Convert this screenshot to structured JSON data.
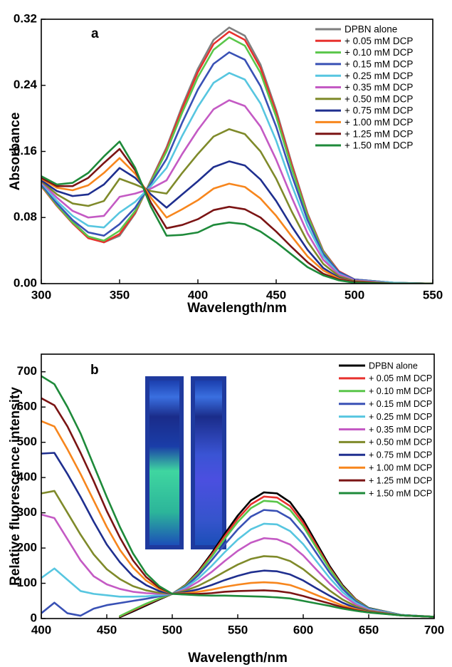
{
  "chart_data": [
    {
      "type": "line",
      "annotation": "a",
      "xlabel": "Wavelength/nm",
      "ylabel": "Absorbance",
      "x": [
        300,
        310,
        320,
        330,
        340,
        350,
        360,
        370,
        380,
        390,
        400,
        410,
        420,
        430,
        440,
        450,
        460,
        470,
        480,
        490,
        500,
        525,
        550
      ],
      "xlim": [
        300,
        550
      ],
      "xticks": [
        300,
        350,
        400,
        450,
        500,
        550
      ],
      "ylim": [
        0,
        0.32
      ],
      "yticks": [
        {
          "value": 0,
          "label": "0.00"
        },
        0.08,
        0.16,
        0.24,
        0.32
      ],
      "legend": "upper right",
      "series": [
        {
          "name": "DPBN alone",
          "color": "#7f7f7f",
          "values": [
            0.118,
            0.095,
            0.075,
            0.057,
            0.05,
            0.058,
            0.085,
            0.125,
            0.165,
            0.215,
            0.26,
            0.295,
            0.31,
            0.3,
            0.265,
            0.21,
            0.145,
            0.085,
            0.04,
            0.015,
            0.005,
            0.001,
            0
          ]
        },
        {
          "name": "+ 0.05 mM DCP",
          "color": "#e8312e",
          "values": [
            0.118,
            0.094,
            0.073,
            0.055,
            0.05,
            0.06,
            0.086,
            0.124,
            0.163,
            0.212,
            0.256,
            0.29,
            0.305,
            0.295,
            0.261,
            0.207,
            0.143,
            0.084,
            0.039,
            0.015,
            0.005,
            0.001,
            0
          ]
        },
        {
          "name": "+ 0.10 mM DCP",
          "color": "#5ac64a",
          "values": [
            0.119,
            0.095,
            0.074,
            0.057,
            0.052,
            0.064,
            0.088,
            0.123,
            0.16,
            0.207,
            0.25,
            0.283,
            0.298,
            0.288,
            0.255,
            0.202,
            0.139,
            0.082,
            0.038,
            0.014,
            0.005,
            0.001,
            0
          ]
        },
        {
          "name": "+ 0.15 mM DCP",
          "color": "#3951b5",
          "values": [
            0.12,
            0.097,
            0.077,
            0.062,
            0.058,
            0.072,
            0.092,
            0.121,
            0.151,
            0.195,
            0.235,
            0.266,
            0.28,
            0.271,
            0.239,
            0.19,
            0.131,
            0.077,
            0.036,
            0.014,
            0.005,
            0.001,
            0
          ]
        },
        {
          "name": "+ 0.25 mM DCP",
          "color": "#57c6e0",
          "values": [
            0.122,
            0.1,
            0.082,
            0.07,
            0.068,
            0.086,
            0.099,
            0.118,
            0.14,
            0.179,
            0.214,
            0.243,
            0.255,
            0.247,
            0.218,
            0.173,
            0.119,
            0.07,
            0.033,
            0.012,
            0.004,
            0.001,
            0
          ]
        },
        {
          "name": "+ 0.35 mM DCP",
          "color": "#c45ac4",
          "values": [
            0.123,
            0.104,
            0.088,
            0.08,
            0.082,
            0.105,
            0.109,
            0.115,
            0.125,
            0.157,
            0.186,
            0.211,
            0.222,
            0.215,
            0.19,
            0.15,
            0.104,
            0.061,
            0.029,
            0.011,
            0.004,
            0,
            0
          ]
        },
        {
          "name": "+ 0.50 mM DCP",
          "color": "#7f8a2a",
          "values": [
            0.124,
            0.108,
            0.097,
            0.094,
            0.1,
            0.127,
            0.12,
            0.112,
            0.109,
            0.134,
            0.157,
            0.178,
            0.187,
            0.181,
            0.16,
            0.127,
            0.087,
            0.051,
            0.024,
            0.009,
            0.003,
            0,
            0
          ]
        },
        {
          "name": "+ 0.75 mM DCP",
          "color": "#1f2f8f",
          "values": [
            0.125,
            0.112,
            0.106,
            0.108,
            0.12,
            0.14,
            0.128,
            0.108,
            0.092,
            0.108,
            0.124,
            0.141,
            0.148,
            0.143,
            0.126,
            0.1,
            0.069,
            0.041,
            0.019,
            0.007,
            0.002,
            0,
            0
          ]
        },
        {
          "name": "+ 1.00 mM DCP",
          "color": "#f7861d",
          "values": [
            0.127,
            0.116,
            0.113,
            0.119,
            0.134,
            0.152,
            0.133,
            0.104,
            0.08,
            0.09,
            0.101,
            0.115,
            0.121,
            0.117,
            0.103,
            0.082,
            0.057,
            0.033,
            0.016,
            0.006,
            0.002,
            0,
            0
          ]
        },
        {
          "name": "+ 1.25 mM DCP",
          "color": "#7b1414",
          "values": [
            0.128,
            0.118,
            0.118,
            0.128,
            0.146,
            0.163,
            0.137,
            0.098,
            0.067,
            0.071,
            0.078,
            0.089,
            0.093,
            0.09,
            0.08,
            0.063,
            0.044,
            0.026,
            0.012,
            0.005,
            0.002,
            0,
            0
          ]
        },
        {
          "name": "+ 1.50 mM DCP",
          "color": "#1e8a3a",
          "values": [
            0.13,
            0.12,
            0.122,
            0.134,
            0.154,
            0.172,
            0.14,
            0.093,
            0.058,
            0.059,
            0.062,
            0.071,
            0.074,
            0.072,
            0.063,
            0.05,
            0.035,
            0.02,
            0.01,
            0.004,
            0.001,
            0,
            0
          ]
        }
      ]
    },
    {
      "type": "line",
      "annotation": "b",
      "xlabel": "Wavelength/nm",
      "ylabel": "Relative fluorescence intensity",
      "x": [
        400,
        410,
        420,
        430,
        440,
        450,
        460,
        470,
        480,
        490,
        500,
        510,
        520,
        530,
        540,
        550,
        560,
        570,
        580,
        590,
        600,
        610,
        620,
        630,
        640,
        650,
        675,
        700
      ],
      "xlim": [
        400,
        700
      ],
      "xticks": [
        400,
        450,
        500,
        550,
        600,
        650,
        700
      ],
      "ylim": [
        0,
        750
      ],
      "yticks": [
        0,
        100,
        200,
        300,
        400,
        500,
        600,
        700
      ],
      "legend": "upper right",
      "series": [
        {
          "name": "DPBN alone",
          "color": "#000000",
          "values": [
            null,
            null,
            null,
            null,
            null,
            null,
            4,
            20,
            37,
            54,
            70,
            95,
            135,
            185,
            240,
            292,
            335,
            358,
            355,
            330,
            280,
            215,
            150,
            95,
            55,
            30,
            10,
            5
          ]
        },
        {
          "name": "+ 0.05 mM DCP",
          "color": "#e8312e",
          "values": [
            null,
            null,
            null,
            null,
            null,
            null,
            6,
            23,
            40,
            56,
            70,
            94,
            132,
            180,
            233,
            283,
            324,
            346,
            343,
            319,
            271,
            208,
            145,
            92,
            54,
            29,
            10,
            5
          ]
        },
        {
          "name": "+ 0.10 mM DCP",
          "color": "#5ac64a",
          "values": [
            null,
            null,
            null,
            null,
            null,
            null,
            7,
            25,
            42,
            57,
            70,
            93,
            129,
            175,
            226,
            274,
            313,
            334,
            331,
            308,
            262,
            201,
            141,
            90,
            52,
            29,
            10,
            5
          ]
        },
        {
          "name": "+ 0.15 mM DCP",
          "color": "#3951b5",
          "values": [
            15,
            45,
            15,
            8,
            28,
            38,
            44,
            50,
            56,
            63,
            70,
            90,
            123,
            165,
            210,
            253,
            289,
            308,
            305,
            284,
            241,
            186,
            131,
            84,
            49,
            28,
            10,
            5
          ]
        },
        {
          "name": "+ 0.25 mM DCP",
          "color": "#57c6e0",
          "values": [
            115,
            142,
            110,
            78,
            70,
            66,
            62,
            62,
            63,
            66,
            70,
            87,
            114,
            149,
            188,
            224,
            253,
            269,
            267,
            248,
            211,
            163,
            116,
            75,
            45,
            26,
            10,
            5
          ]
        },
        {
          "name": "+ 0.35 mM DCP",
          "color": "#c45ac4",
          "values": [
            295,
            285,
            225,
            165,
            120,
            97,
            84,
            76,
            72,
            70,
            70,
            83,
            105,
            132,
            163,
            192,
            215,
            228,
            225,
            210,
            179,
            139,
            100,
            66,
            40,
            24,
            9,
            5
          ]
        },
        {
          "name": "+ 0.50 mM DCP",
          "color": "#7f8a2a",
          "values": [
            355,
            362,
            300,
            238,
            182,
            140,
            112,
            92,
            80,
            73,
            70,
            79,
            93,
            112,
            133,
            153,
            169,
            177,
            175,
            163,
            140,
            110,
            80,
            54,
            35,
            22,
            9,
            5
          ]
        },
        {
          "name": "+ 0.75 mM DCP",
          "color": "#1f2f8f",
          "values": [
            468,
            470,
            410,
            345,
            275,
            210,
            160,
            120,
            95,
            78,
            70,
            75,
            83,
            95,
            109,
            121,
            131,
            136,
            134,
            125,
            108,
            86,
            65,
            45,
            30,
            20,
            9,
            5
          ]
        },
        {
          "name": "+ 1.00 mM DCP",
          "color": "#f7861d",
          "values": [
            560,
            545,
            480,
            410,
            335,
            260,
            195,
            145,
            108,
            84,
            70,
            72,
            76,
            82,
            90,
            96,
            101,
            103,
            101,
            95,
            82,
            67,
            52,
            37,
            27,
            19,
            9,
            5
          ]
        },
        {
          "name": "+ 1.25 mM DCP",
          "color": "#7b1414",
          "values": [
            625,
            605,
            545,
            470,
            390,
            305,
            230,
            165,
            118,
            88,
            70,
            70,
            70,
            72,
            76,
            78,
            79,
            80,
            78,
            73,
            64,
            53,
            43,
            32,
            24,
            18,
            9,
            5
          ]
        },
        {
          "name": "+ 1.50 mM DCP",
          "color": "#1e8a3a",
          "values": [
            688,
            665,
            600,
            525,
            435,
            345,
            260,
            185,
            128,
            92,
            70,
            68,
            66,
            65,
            65,
            64,
            63,
            62,
            60,
            57,
            50,
            43,
            36,
            28,
            22,
            17,
            9,
            5
          ]
        }
      ]
    }
  ]
}
